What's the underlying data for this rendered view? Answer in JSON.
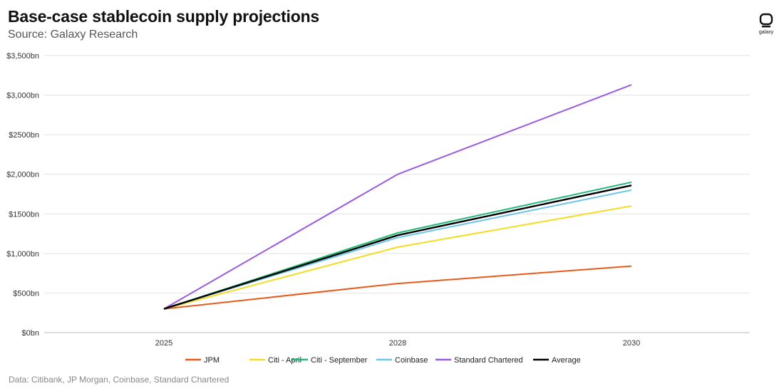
{
  "header": {
    "title": "Base-case stablecoin supply projections",
    "subtitle": "Source: Galaxy Research"
  },
  "logo": {
    "text": "galaxy",
    "icon": "galaxy-logo-icon"
  },
  "footer": {
    "text": "Data: Citibank, JP Morgan, Coinbase, Standard Chartered"
  },
  "chart_data": {
    "type": "line",
    "x": [
      "2025",
      "2028",
      "2030"
    ],
    "ylim": [
      0,
      3500
    ],
    "yticks": [
      0,
      500,
      1000,
      1500,
      2000,
      2500,
      3000,
      3500
    ],
    "ytick_labels": [
      "$0bn",
      "$500bn",
      "$1,000bn",
      "$1500bn",
      "$2,000bn",
      "$2500bn",
      "$3,000bn",
      "$3,500bn"
    ],
    "grid": true,
    "legend_position": "bottom",
    "series": [
      {
        "name": "JPM",
        "color": "#e8591a",
        "values": [
          300,
          620,
          840
        ]
      },
      {
        "name": "Citi - April",
        "color": "#f2dd22",
        "values": [
          300,
          1080,
          1600
        ]
      },
      {
        "name": "Citi - September",
        "color": "#1fb978",
        "values": [
          300,
          1260,
          1900
        ]
      },
      {
        "name": "Coinbase",
        "color": "#6cc6e6",
        "values": [
          300,
          1200,
          1800
        ]
      },
      {
        "name": "Standard Chartered",
        "color": "#9a5be3",
        "values": [
          300,
          2000,
          3130
        ]
      },
      {
        "name": "Average",
        "color": "#000000",
        "values": [
          300,
          1230,
          1860
        ]
      }
    ]
  }
}
